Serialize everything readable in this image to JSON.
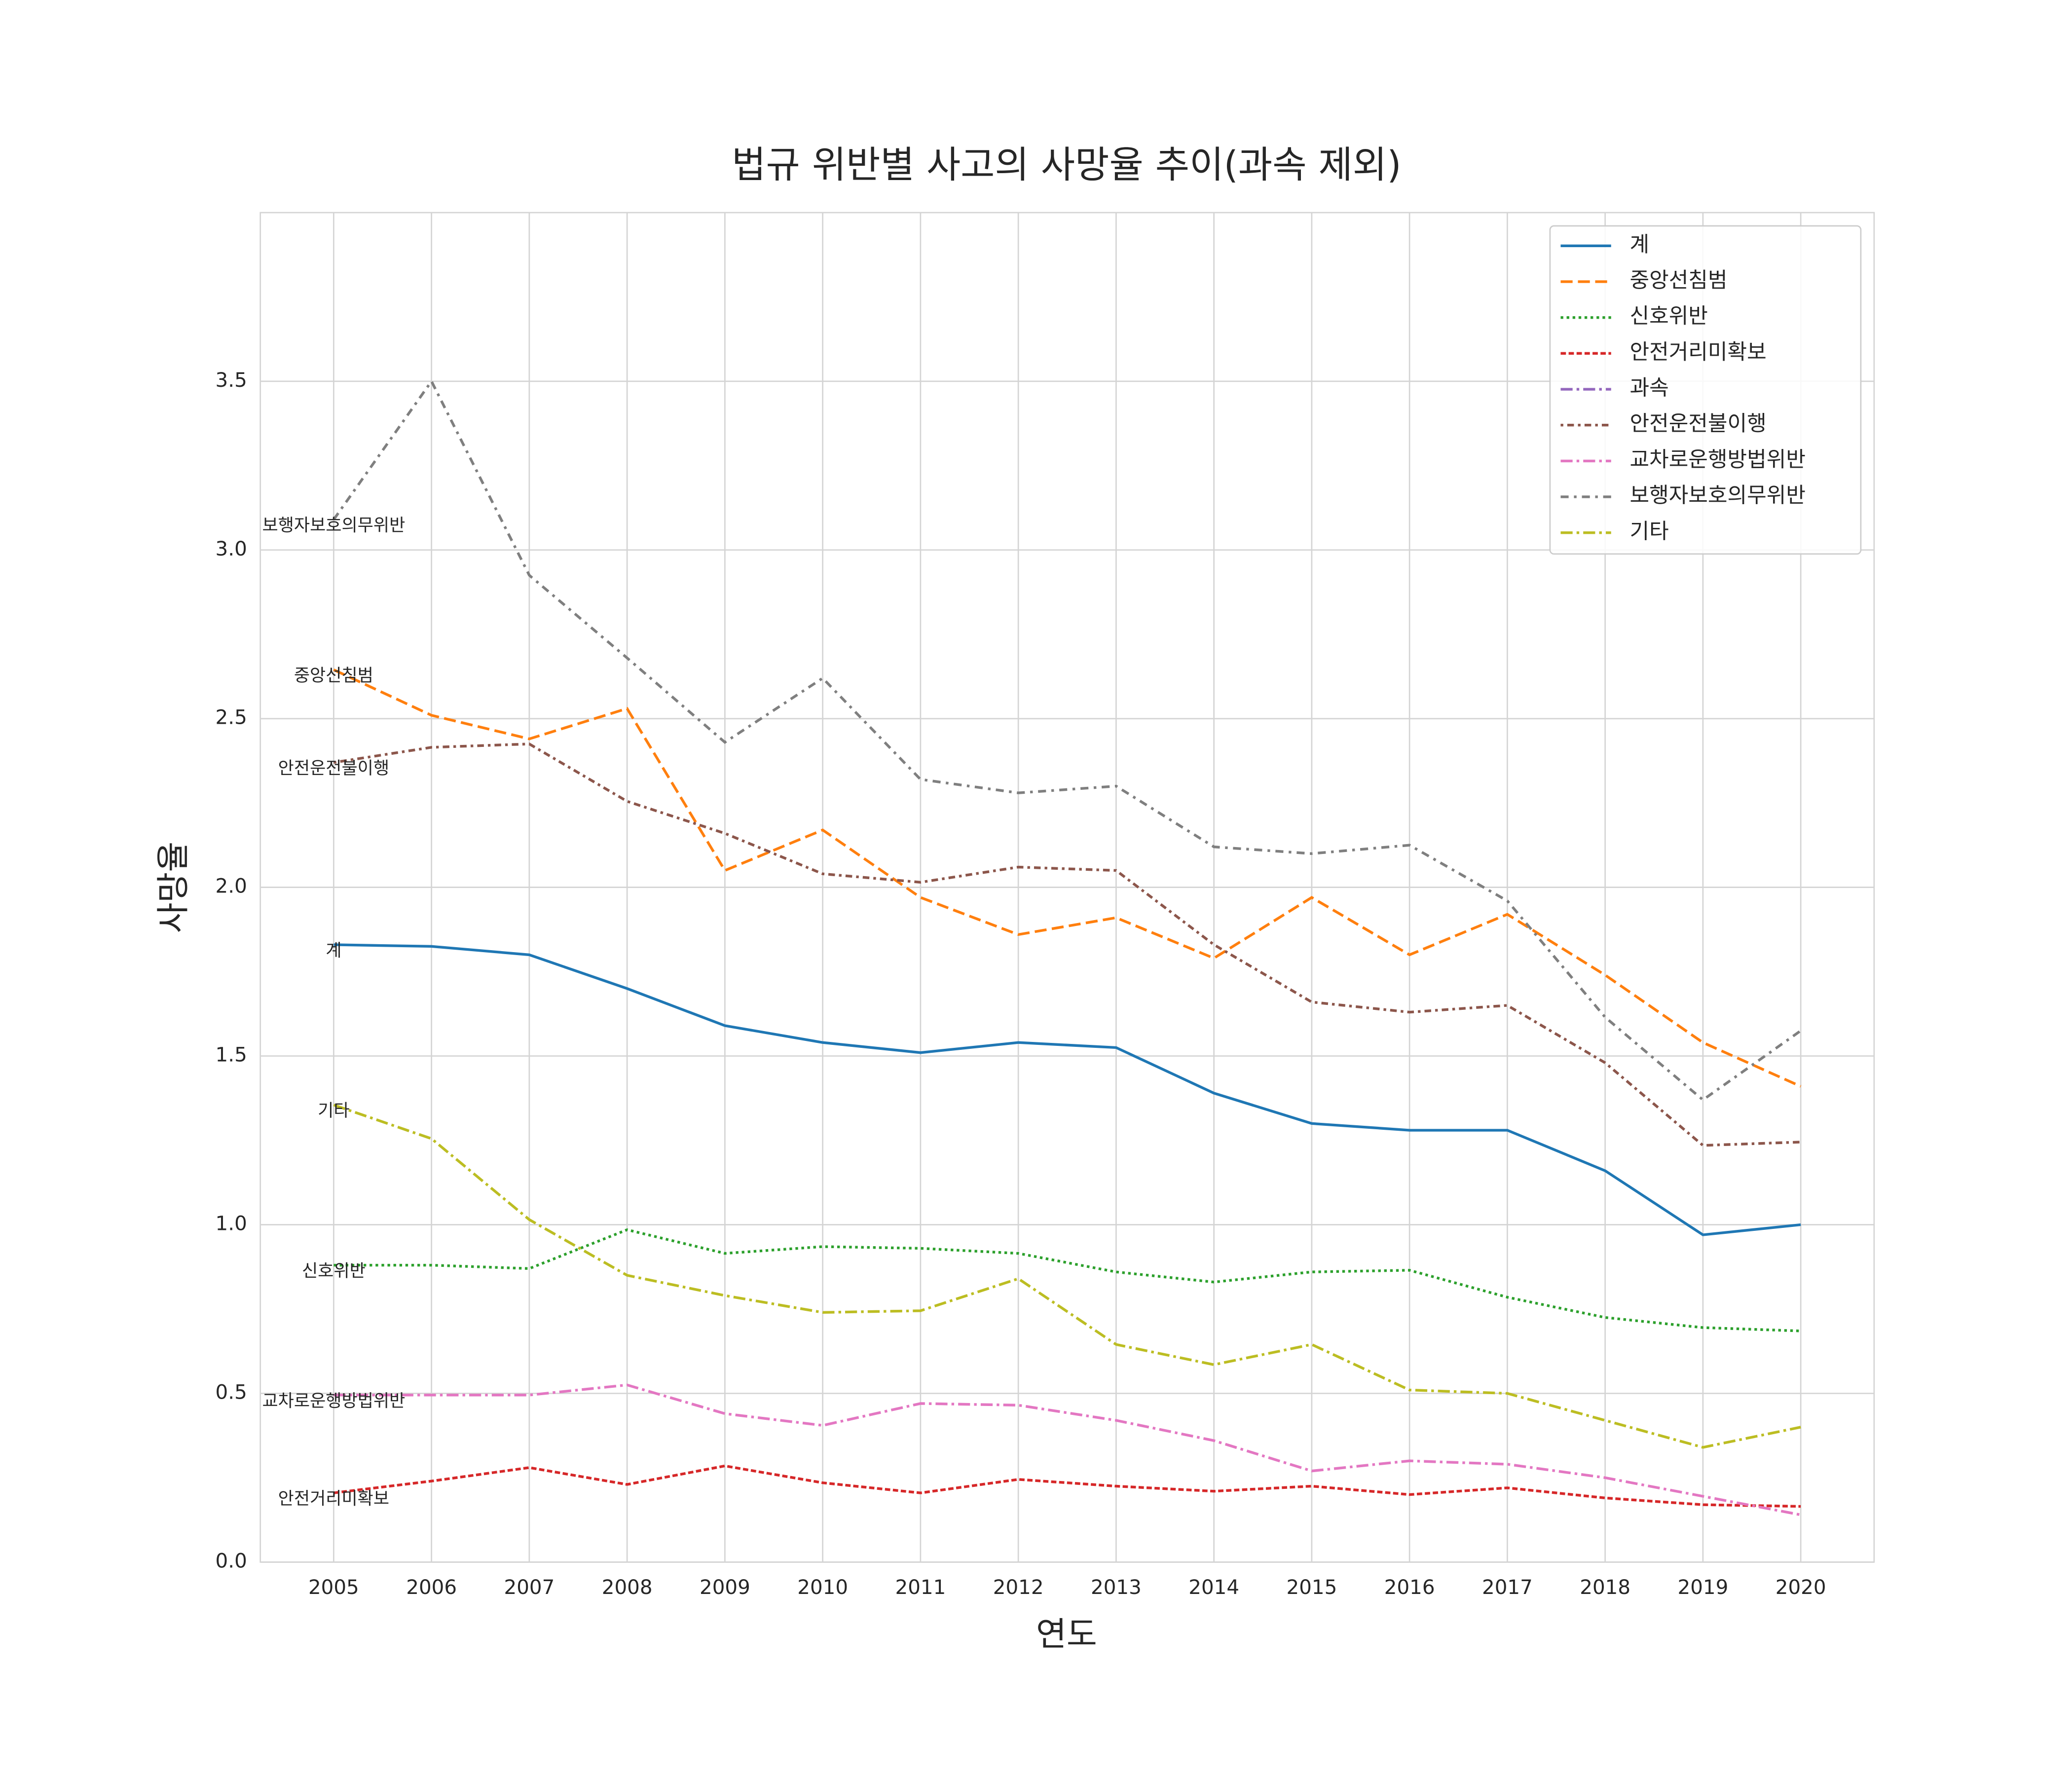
{
  "chart_data": {
    "type": "line",
    "title": "법규 위반별 사고의 사망율 추이(과속 제외)",
    "x_label": "연도",
    "y_label": "사망율",
    "x": [
      2005,
      2006,
      2007,
      2008,
      2009,
      2010,
      2011,
      2012,
      2013,
      2014,
      2015,
      2016,
      2017,
      2018,
      2019,
      2020
    ],
    "xlim": [
      2004.25,
      2020.75
    ],
    "xticks": [
      2005,
      2006,
      2007,
      2008,
      2009,
      2010,
      2011,
      2012,
      2013,
      2014,
      2015,
      2016,
      2017,
      2018,
      2019,
      2020
    ],
    "ylim": [
      0,
      4.0
    ],
    "yticks": [
      0.0,
      0.5,
      1.0,
      1.5,
      2.0,
      2.5,
      3.0,
      3.5
    ],
    "grid": true,
    "legend": "upper right",
    "line_end_labels": "start",
    "series": [
      {
        "name": "계",
        "color": "#1f77b4",
        "linestyle": "solid",
        "values": [
          1.83,
          1.825,
          1.8,
          1.7,
          1.59,
          1.54,
          1.51,
          1.54,
          1.525,
          1.39,
          1.3,
          1.28,
          1.28,
          1.16,
          0.97,
          1.0
        ]
      },
      {
        "name": "중앙선침범",
        "color": "#ff7f0e",
        "linestyle": "dashed",
        "values": [
          2.645,
          2.51,
          2.44,
          2.53,
          2.05,
          2.17,
          1.97,
          1.86,
          1.91,
          1.79,
          1.97,
          1.8,
          1.92,
          1.74,
          1.54,
          1.41
        ]
      },
      {
        "name": "신호위반",
        "color": "#2ca02c",
        "linestyle": "dotted",
        "values": [
          0.88,
          0.88,
          0.87,
          0.985,
          0.915,
          0.935,
          0.93,
          0.915,
          0.86,
          0.83,
          0.86,
          0.865,
          0.785,
          0.725,
          0.695,
          0.685
        ]
      },
      {
        "name": "안전거리미확보",
        "color": "#d62728",
        "linestyle": "densely-dashed",
        "values": [
          0.205,
          0.24,
          0.28,
          0.23,
          0.285,
          0.235,
          0.205,
          0.245,
          0.225,
          0.21,
          0.225,
          0.2,
          0.22,
          0.19,
          0.17,
          0.165
        ]
      },
      {
        "name": "과속",
        "color": "#9467bd",
        "linestyle": "dashdot",
        "values": [
          null,
          null,
          null,
          null,
          null,
          null,
          null,
          null,
          null,
          null,
          null,
          null,
          null,
          null,
          null,
          null
        ]
      },
      {
        "name": "안전운전불이행",
        "color": "#8c564b",
        "linestyle": "dotdash",
        "values": [
          2.37,
          2.415,
          2.425,
          2.255,
          2.16,
          2.04,
          2.015,
          2.06,
          2.05,
          1.83,
          1.66,
          1.63,
          1.65,
          1.48,
          1.235,
          1.245
        ]
      },
      {
        "name": "교차로운행방법위반",
        "color": "#e377c2",
        "linestyle": "dashdot",
        "values": [
          0.495,
          0.495,
          0.495,
          0.525,
          0.44,
          0.405,
          0.47,
          0.465,
          0.42,
          0.36,
          0.27,
          0.3,
          0.29,
          0.25,
          0.195,
          0.14
        ]
      },
      {
        "name": "보행자보호의무위반",
        "color": "#7f7f7f",
        "linestyle": "loosely-dashdot",
        "values": [
          3.09,
          3.5,
          2.925,
          2.68,
          2.43,
          2.62,
          2.32,
          2.28,
          2.3,
          2.12,
          2.1,
          2.125,
          1.96,
          1.615,
          1.37,
          1.575
        ]
      },
      {
        "name": "기타",
        "color": "#bcbd22",
        "linestyle": "dashdot",
        "values": [
          1.355,
          1.255,
          1.015,
          0.85,
          0.79,
          0.74,
          0.745,
          0.84,
          0.645,
          0.585,
          0.645,
          0.51,
          0.5,
          0.42,
          0.34,
          0.4
        ]
      }
    ]
  }
}
